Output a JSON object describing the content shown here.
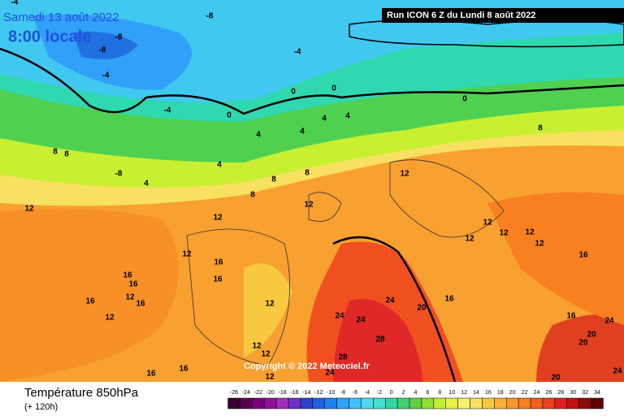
{
  "header": {
    "date": "Samedi 13 août 2022",
    "time": "8:00 locale",
    "run": "Run ICON 6 Z du Lundi 8 août 2022"
  },
  "footer": {
    "title": "Température 850hPa",
    "subtitle": "(+ 120h)",
    "copyright": "Copyright © 2022 Meteociel.fr"
  },
  "legend": {
    "ticks": [
      -26,
      -24,
      -22,
      -20,
      -18,
      -16,
      -14,
      -12,
      -10,
      -8,
      -6,
      -4,
      -2,
      0,
      2,
      4,
      6,
      8,
      10,
      12,
      14,
      16,
      18,
      20,
      22,
      24,
      26,
      28,
      30,
      32,
      34
    ],
    "colors": [
      "#3a0030",
      "#5a0050",
      "#7a0078",
      "#90109a",
      "#a030b8",
      "#7030c8",
      "#3040d0",
      "#2060e0",
      "#2080f0",
      "#30a0f8",
      "#40c0f8",
      "#50d8f0",
      "#40e0d0",
      "#30d8a0",
      "#40d070",
      "#60d040",
      "#90e030",
      "#c0f030",
      "#e8f040",
      "#f8f070",
      "#f8e060",
      "#f8c840",
      "#f8b030",
      "#f89828",
      "#f88020",
      "#f06020",
      "#e84020",
      "#e02020",
      "#c01010",
      "#900808",
      "#600000"
    ]
  },
  "contour_labels": [
    -4,
    -8,
    -8,
    -8,
    -4,
    -4,
    -4,
    0,
    0,
    0,
    0,
    4,
    4,
    4,
    4,
    8,
    8,
    8,
    4,
    -8,
    4,
    8,
    8,
    8,
    12,
    12,
    12,
    12,
    12,
    12,
    12,
    12,
    12,
    16,
    12,
    16,
    16,
    16,
    16,
    12,
    16,
    16,
    12,
    12,
    24,
    24,
    24,
    20,
    16,
    16,
    24,
    20,
    20,
    28,
    28,
    12,
    12,
    16,
    16,
    12,
    24,
    20,
    24
  ]
}
